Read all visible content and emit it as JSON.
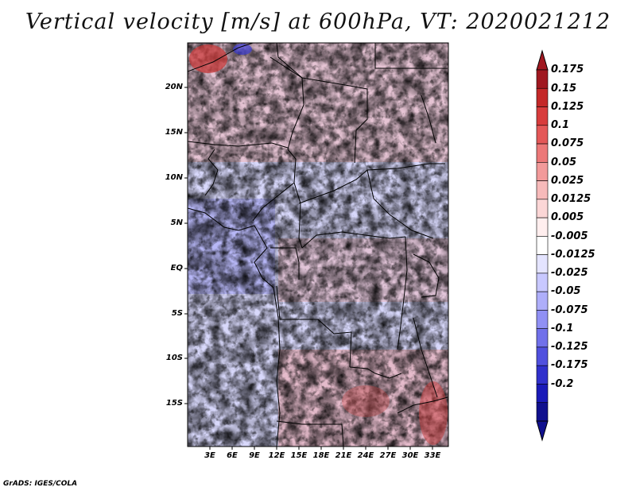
{
  "title": "Vertical velocity [m/s] at 600hPa, VT: 2020021212",
  "latitude_labels": [
    "20N",
    "15N",
    "10N",
    "5N",
    "EQ",
    "5S",
    "10S",
    "15S"
  ],
  "longitude_labels": [
    "3E",
    "6E",
    "9E",
    "12E",
    "15E",
    "18E",
    "21E",
    "24E",
    "27E",
    "30E",
    "33E"
  ],
  "colorbar": {
    "levels": [
      "0.175",
      "0.15",
      "0.125",
      "0.1",
      "0.075",
      "0.05",
      "0.025",
      "0.0125",
      "0.005",
      "-0.005",
      "-0.0125",
      "-0.025",
      "-0.05",
      "-0.075",
      "-0.1",
      "-0.125",
      "-0.175",
      "-0.2"
    ],
    "colors": [
      "#a01820",
      "#c42828",
      "#d83c3c",
      "#e45858",
      "#ec7878",
      "#f29a9a",
      "#f7baba",
      "#fbd6d6",
      "#ffeeee",
      "#ffffff",
      "#e4e4ff",
      "#c8c8ff",
      "#aeaefa",
      "#9090f4",
      "#7070ea",
      "#5050de",
      "#3030cc",
      "#1a1ab8",
      "#10108e"
    ],
    "arrow_colors": {
      "top": "#a01820",
      "bottom": "#10108e"
    }
  },
  "colors": {
    "positive": "#e05050",
    "negative": "#5858e0",
    "border": "#000000"
  },
  "credit": "GrADS: IGES/COLA"
}
